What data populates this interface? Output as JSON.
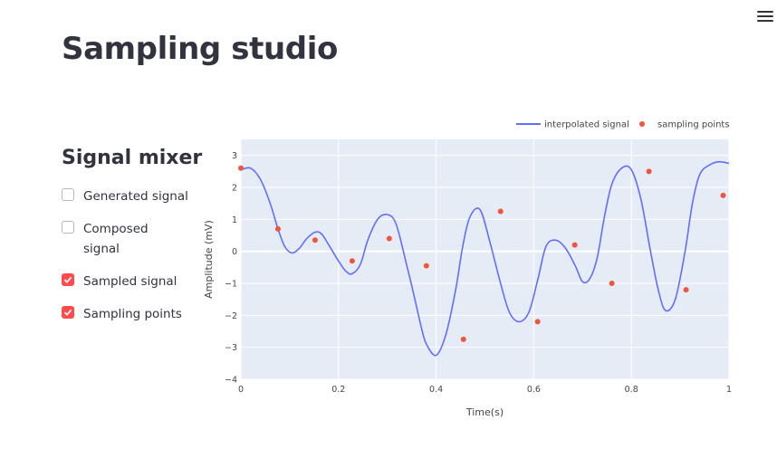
{
  "app": {
    "title": "Sampling studio"
  },
  "sidebar": {
    "heading": "Signal mixer",
    "checkboxes": [
      {
        "label": "Generated signal",
        "checked": false
      },
      {
        "label": "Composed signal",
        "checked": false
      },
      {
        "label": "Sampled signal",
        "checked": true
      },
      {
        "label": "Sampling points",
        "checked": true
      }
    ]
  },
  "icons": {
    "menu": "hamburger-menu-icon",
    "check": "checkmark-icon"
  },
  "colors": {
    "accent": "#ff4b4b",
    "line": "#636efa",
    "points": "#ef553b",
    "plot_bg": "#e5ecf6"
  },
  "chart_data": {
    "type": "line",
    "xlabel": "Time(s)",
    "ylabel": "Amplitude (mV)",
    "xlim": [
      0,
      1
    ],
    "ylim": [
      -4,
      3.5
    ],
    "xticks": [
      "0",
      "0.2",
      "0.4",
      "0.6",
      "0.8",
      "1"
    ],
    "yticks": [
      "−4",
      "−3",
      "−2",
      "−1",
      "0",
      "1",
      "2",
      "3"
    ],
    "grid": true,
    "legend_position": "top-right",
    "series": [
      {
        "name": "interpolated signal",
        "mode": "line",
        "x": [
          0,
          0.02,
          0.04,
          0.06,
          0.076,
          0.09,
          0.105,
          0.12,
          0.135,
          0.152,
          0.165,
          0.18,
          0.2,
          0.215,
          0.228,
          0.245,
          0.26,
          0.28,
          0.3,
          0.318,
          0.34,
          0.355,
          0.37,
          0.38,
          0.4,
          0.42,
          0.44,
          0.455,
          0.47,
          0.49,
          0.51,
          0.532,
          0.55,
          0.57,
          0.59,
          0.608,
          0.625,
          0.645,
          0.665,
          0.685,
          0.7,
          0.715,
          0.73,
          0.745,
          0.76,
          0.78,
          0.8,
          0.82,
          0.838,
          0.855,
          0.87,
          0.89,
          0.91,
          0.925,
          0.94,
          0.96,
          0.98,
          1.0
        ],
        "y": [
          2.55,
          2.6,
          2.25,
          1.5,
          0.7,
          0.15,
          -0.05,
          0.1,
          0.4,
          0.6,
          0.55,
          0.2,
          -0.3,
          -0.62,
          -0.7,
          -0.4,
          0.35,
          1.0,
          1.15,
          0.85,
          -0.45,
          -1.4,
          -2.4,
          -2.9,
          -3.25,
          -2.6,
          -1.2,
          0.2,
          1.1,
          1.3,
          0.3,
          -1.0,
          -1.9,
          -2.2,
          -1.9,
          -0.9,
          0.15,
          0.35,
          0.1,
          -0.45,
          -0.95,
          -0.85,
          -0.2,
          1.1,
          2.1,
          2.6,
          2.55,
          1.6,
          0.1,
          -1.2,
          -1.85,
          -1.5,
          0.0,
          1.5,
          2.4,
          2.7,
          2.8,
          2.75
        ]
      },
      {
        "name": "sampling points",
        "mode": "markers",
        "x": [
          0,
          0.076,
          0.152,
          0.228,
          0.304,
          0.38,
          0.456,
          0.532,
          0.608,
          0.684,
          0.76,
          0.836,
          0.912,
          0.988
        ],
        "y": [
          2.6,
          0.7,
          0.35,
          -0.3,
          0.4,
          -0.45,
          -2.75,
          1.25,
          -2.2,
          0.2,
          -1.0,
          2.5,
          -1.2,
          1.75
        ]
      }
    ]
  }
}
